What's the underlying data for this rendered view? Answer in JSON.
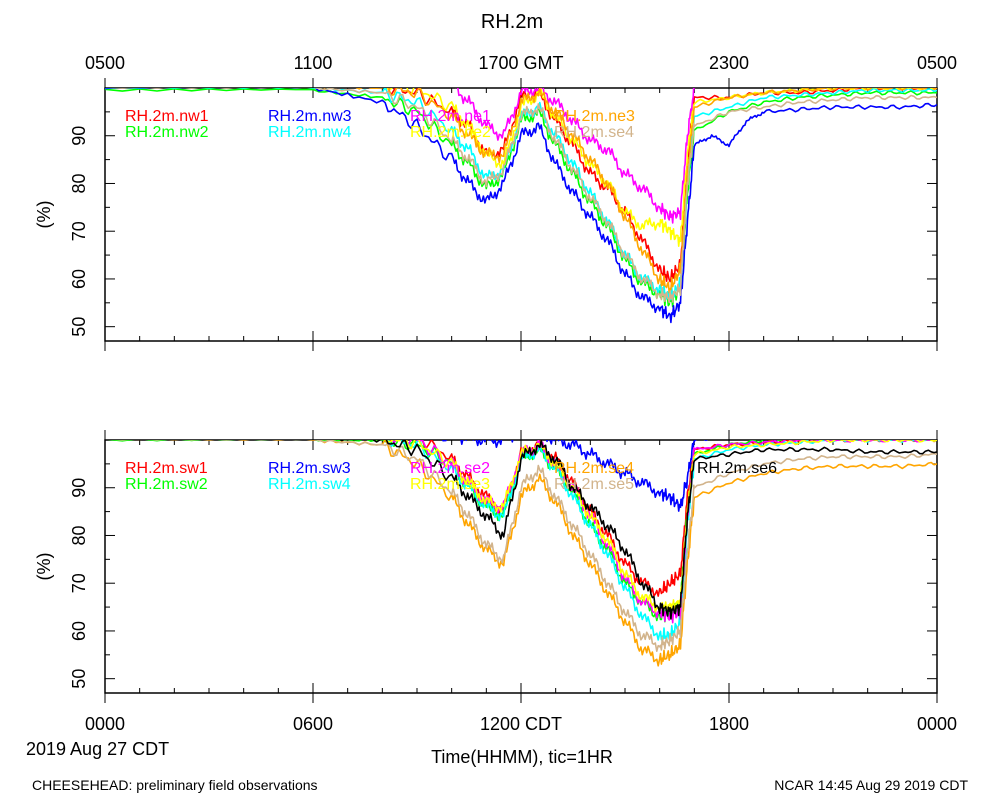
{
  "title": "RH.2m",
  "top_axis_ticks": [
    "0500",
    "1100",
    "1700 GMT",
    "2300",
    "0500"
  ],
  "bottom_axis_ticks": [
    "0000",
    "0600",
    "1200 CDT",
    "1800",
    "0000"
  ],
  "date_label": "2019 Aug 27 CDT",
  "xlabel": "Time(HHMM), tic=1HR",
  "footer_left": "CHEESEHEAD: preliminary field observations",
  "footer_right": "NCAR 14:45 Aug 29 2019 CDT",
  "chart_data": [
    {
      "type": "line",
      "panel": "top",
      "title": "RH.2m",
      "ylabel": "(%)",
      "ylim": [
        47,
        100
      ],
      "xlim": [
        0,
        24
      ],
      "y_ticks": [
        50,
        60,
        70,
        80,
        90
      ],
      "x_unit": "hours CDT since 2019-08-27 00:00",
      "grid": false,
      "series": [
        {
          "name": "RH.2m.nw1",
          "color": "#ff0000",
          "x": [
            0,
            6,
            8,
            9,
            10,
            10.5,
            11,
            11.5,
            12,
            12.5,
            13,
            13.5,
            14,
            14.5,
            15,
            15.5,
            16,
            16.3,
            16.6,
            16.8,
            17,
            18,
            19,
            20,
            21,
            22,
            23,
            24
          ],
          "y": [
            101,
            101,
            100.5,
            99,
            95,
            92,
            86,
            87,
            98,
            99,
            93,
            88,
            82,
            79,
            74,
            68,
            62,
            60,
            63,
            84,
            98,
            98,
            99,
            99,
            99.5,
            100,
            100,
            100
          ]
        },
        {
          "name": "RH.2m.nw2",
          "color": "#00ff00",
          "x": [
            0,
            6,
            8,
            9,
            10,
            10.5,
            11,
            11.5,
            12,
            12.5,
            13,
            13.5,
            14,
            14.5,
            15,
            15.5,
            16,
            16.3,
            16.6,
            16.8,
            17,
            18,
            19,
            20,
            21,
            22,
            23,
            24
          ],
          "y": [
            99.5,
            99.5,
            98,
            95,
            88,
            84,
            79,
            82,
            93,
            95,
            88,
            82,
            76,
            71,
            64,
            59,
            57,
            55,
            58,
            78,
            91,
            95,
            97,
            98,
            98.5,
            99,
            99,
            99
          ]
        },
        {
          "name": "RH.2m.nw3",
          "color": "#0000ff",
          "x": [
            0,
            6,
            8,
            9,
            10,
            10.5,
            11,
            11.5,
            12,
            12.5,
            13,
            13.5,
            14,
            14.5,
            15,
            15.5,
            16,
            16.3,
            16.6,
            16.8,
            17,
            17.5,
            18,
            18.5,
            19,
            20,
            21,
            22,
            23,
            24
          ],
          "y": [
            100,
            100,
            97,
            92,
            85,
            80,
            76,
            80,
            90,
            92,
            84,
            78,
            73,
            68,
            61,
            56,
            54,
            52,
            55,
            72,
            88,
            90,
            88,
            93,
            95,
            95.5,
            96,
            96,
            96,
            96.5
          ]
        },
        {
          "name": "RH.2m.nw4",
          "color": "#00ffff",
          "x": [
            0,
            6,
            8,
            9,
            10,
            10.5,
            11,
            11.5,
            12,
            12.5,
            13,
            13.5,
            14,
            14.5,
            15,
            15.5,
            16,
            16.3,
            16.6,
            16.8,
            17,
            18,
            19,
            20,
            21,
            22,
            23,
            24
          ],
          "y": [
            100,
            100,
            99,
            97,
            91,
            87,
            81,
            83,
            94,
            96,
            90,
            84,
            78,
            72,
            65,
            60,
            58,
            56,
            59,
            80,
            94,
            96,
            98,
            98.5,
            99,
            99.5,
            99.5,
            99.5
          ]
        },
        {
          "name": "RH.2m.ne1",
          "color": "#ff00ff",
          "x": [
            0,
            6,
            8,
            9,
            10,
            10.5,
            11,
            11.5,
            12,
            12.5,
            13,
            13.5,
            14,
            14.5,
            15,
            15.5,
            16,
            16.3,
            16.6,
            16.8,
            17,
            18,
            19,
            20,
            21,
            22,
            23,
            24
          ],
          "y": [
            102,
            102.5,
            102.5,
            102.5,
            101,
            97,
            92,
            90,
            99,
            100,
            97,
            93,
            89,
            87,
            82,
            79,
            75,
            73,
            74,
            90,
            100,
            101,
            101.5,
            102,
            102,
            102,
            102,
            102
          ]
        },
        {
          "name": "RH.2m.ne2",
          "color": "#ffff00",
          "x": [
            0,
            6,
            8,
            9,
            10,
            10.5,
            11,
            11.5,
            12,
            12.5,
            13,
            13.5,
            14,
            14.5,
            15,
            15.5,
            16,
            16.3,
            16.6,
            16.8,
            17,
            18,
            19,
            20,
            21,
            22,
            23,
            24
          ],
          "y": [
            101,
            101,
            100.5,
            100,
            96,
            92,
            86,
            84,
            96,
            99,
            94,
            89,
            84,
            80,
            74,
            71,
            72,
            70,
            68,
            86,
            97,
            98,
            99,
            99.5,
            100,
            100,
            100,
            100
          ]
        },
        {
          "name": "RH.2m.ne3",
          "color": "#ffa500",
          "x": [
            0,
            6,
            8,
            9,
            10,
            10.5,
            11,
            11.5,
            12,
            12.5,
            13,
            13.5,
            14,
            14.5,
            15,
            15.5,
            16,
            16.3,
            16.6,
            16.8,
            17,
            18,
            19,
            20,
            21,
            22,
            23,
            24
          ],
          "y": [
            100.5,
            100.5,
            100,
            99,
            94,
            90,
            86,
            86,
            97,
            99,
            95,
            90,
            85,
            80,
            73,
            66,
            60,
            58,
            62,
            82,
            96,
            98,
            99,
            99.5,
            100,
            100,
            100,
            100
          ]
        },
        {
          "name": "RH.2m.se4",
          "color": "#d2b48c",
          "x": [
            0,
            6,
            8,
            9,
            10,
            10.5,
            11,
            11.5,
            12,
            12.5,
            13,
            13.5,
            14,
            14.5,
            15,
            15.5,
            16,
            16.3,
            16.6,
            16.8,
            17,
            18,
            19,
            20,
            21,
            22,
            23,
            24
          ],
          "y": [
            100,
            100,
            99,
            96,
            89,
            85,
            80,
            83,
            94,
            96,
            89,
            83,
            77,
            72,
            65,
            60,
            57,
            56,
            58,
            80,
            92,
            95,
            96,
            97,
            97.5,
            98,
            98,
            98
          ]
        }
      ]
    },
    {
      "type": "line",
      "panel": "bottom",
      "title": "RH.2m",
      "ylabel": "(%)",
      "ylim": [
        47,
        100
      ],
      "xlim": [
        0,
        24
      ],
      "y_ticks": [
        50,
        60,
        70,
        80,
        90
      ],
      "x_unit": "hours CDT since 2019-08-27 00:00",
      "grid": false,
      "series": [
        {
          "name": "RH.2m.sw1",
          "color": "#ff0000",
          "x": [
            0,
            6,
            8,
            9,
            10,
            10.5,
            11,
            11.5,
            12,
            12.5,
            13,
            13.5,
            14,
            14.5,
            15,
            15.5,
            16,
            16.3,
            16.6,
            16.8,
            17,
            18,
            19,
            20,
            21,
            22,
            23,
            24
          ],
          "y": [
            102,
            102,
            101.5,
            101,
            96,
            92,
            88,
            85,
            97,
            99,
            96,
            91,
            85,
            80,
            74,
            70,
            68,
            70,
            72,
            88,
            98,
            99,
            99.5,
            100,
            100,
            100,
            100,
            100
          ]
        },
        {
          "name": "RH.2m.sw2",
          "color": "#00ff00",
          "x": [
            0,
            6,
            8,
            9,
            10,
            10.5,
            11,
            11.5,
            12,
            12.5,
            13,
            13.5,
            14,
            14.5,
            15,
            15.5,
            16,
            16.3,
            16.6,
            16.8,
            17,
            18,
            19,
            20,
            21,
            22,
            23,
            24
          ],
          "y": [
            100,
            100,
            100,
            99,
            95,
            90,
            86,
            84,
            96,
            98,
            94,
            89,
            82,
            77,
            70,
            66,
            63,
            64,
            66,
            85,
            97,
            99,
            100,
            100.5,
            101,
            101,
            101,
            101
          ]
        },
        {
          "name": "RH.2m.sw3",
          "color": "#0000ff",
          "x": [
            0,
            6,
            8,
            9,
            10,
            10.5,
            11,
            11.5,
            12,
            12.5,
            13,
            13.5,
            14,
            14.5,
            15,
            15.5,
            16,
            16.3,
            16.6,
            16.8,
            17,
            18,
            19,
            20,
            21,
            22,
            23,
            24
          ],
          "y": [
            101,
            101.5,
            101.5,
            101.5,
            101,
            100.5,
            100,
            100,
            102,
            102,
            100,
            99,
            97,
            95,
            93,
            91,
            89,
            88,
            86,
            92,
            100,
            101,
            101,
            101.5,
            101.5,
            101.5,
            102,
            102
          ]
        },
        {
          "name": "RH.2m.sw4",
          "color": "#00ffff",
          "x": [
            0,
            6,
            8,
            9,
            10,
            10.5,
            11,
            11.5,
            12,
            12.5,
            13,
            13.5,
            14,
            14.5,
            15,
            15.5,
            16,
            16.3,
            16.6,
            16.8,
            17,
            18,
            19,
            20,
            21,
            22,
            23,
            24
          ],
          "y": [
            101,
            101,
            100.5,
            99,
            94,
            90,
            86,
            84,
            96,
            98,
            94,
            88,
            82,
            76,
            69,
            63,
            59,
            59,
            62,
            82,
            96,
            98,
            99,
            99.5,
            100,
            100,
            100,
            100
          ]
        },
        {
          "name": "RH.2m.se2",
          "color": "#ff00ff",
          "x": [
            0,
            6,
            8,
            9,
            10,
            10.5,
            11,
            11.5,
            12,
            12.5,
            13,
            13.5,
            14,
            14.5,
            15,
            15.5,
            16,
            16.3,
            16.6,
            16.8,
            17,
            18,
            19,
            20,
            21,
            22,
            23,
            24
          ],
          "y": [
            101.5,
            101.5,
            101,
            100,
            95,
            91,
            87,
            86,
            97,
            99,
            95,
            90,
            84,
            78,
            71,
            66,
            64,
            63,
            64,
            84,
            98,
            99,
            99.5,
            100,
            100,
            100,
            100,
            100
          ]
        },
        {
          "name": "RH.2m.se3",
          "color": "#ffff00",
          "x": [
            0,
            6,
            8,
            9,
            10,
            10.5,
            11,
            11.5,
            12,
            12.5,
            13,
            13.5,
            14,
            14.5,
            15,
            15.5,
            16,
            16.3,
            16.6,
            16.8,
            17,
            18,
            19,
            20,
            21,
            22,
            23,
            24
          ],
          "y": [
            101,
            101,
            100.5,
            99.5,
            95,
            91,
            87,
            86,
            97,
            99,
            95,
            90,
            84,
            79,
            72,
            67,
            65,
            65,
            66,
            85,
            97,
            98.5,
            99,
            99.5,
            100,
            100,
            100,
            100
          ]
        },
        {
          "name": "RH.2m.se4",
          "color": "#ffa500",
          "x": [
            0,
            6,
            8,
            9,
            10,
            10.5,
            11,
            11.5,
            12,
            12.5,
            13,
            13.5,
            14,
            14.5,
            15,
            15.5,
            16,
            16.3,
            16.6,
            16.8,
            17,
            18,
            19,
            20,
            21,
            22,
            23,
            24
          ],
          "y": [
            100,
            100,
            99,
            95,
            88,
            82,
            77,
            74,
            88,
            92,
            87,
            80,
            74,
            68,
            62,
            56,
            54,
            55,
            57,
            74,
            88,
            91,
            93,
            94,
            94.5,
            94.5,
            94.5,
            95
          ]
        },
        {
          "name": "RH.2m.se5",
          "color": "#d2b48c",
          "x": [
            0,
            6,
            8,
            9,
            10,
            10.5,
            11,
            11.5,
            12,
            12.5,
            13,
            13.5,
            14,
            14.5,
            15,
            15.5,
            16,
            16.3,
            16.6,
            16.8,
            17,
            18,
            19,
            20,
            21,
            22,
            23,
            24
          ],
          "y": [
            100,
            100,
            99,
            96,
            89,
            84,
            78,
            75,
            90,
            94,
            88,
            82,
            76,
            70,
            64,
            59,
            57,
            58,
            60,
            77,
            90,
            93,
            95,
            96,
            96.5,
            96.5,
            96.5,
            97
          ]
        },
        {
          "name": "RH.2m.se6",
          "color": "#000000",
          "x": [
            0,
            6,
            8,
            9,
            10,
            10.5,
            11,
            11.5,
            12,
            12.5,
            13,
            13.5,
            14,
            14.5,
            15,
            15.5,
            16,
            16.3,
            16.6,
            16.8,
            17,
            18,
            19,
            20,
            21,
            22,
            23,
            24
          ],
          "y": [
            100.5,
            100.5,
            100,
            98,
            92,
            88,
            84,
            80,
            96,
            99,
            96,
            90,
            86,
            82,
            77,
            70,
            65,
            64,
            65,
            84,
            96,
            97,
            98,
            98,
            98,
            97.5,
            97.5,
            97.5
          ]
        }
      ]
    }
  ]
}
